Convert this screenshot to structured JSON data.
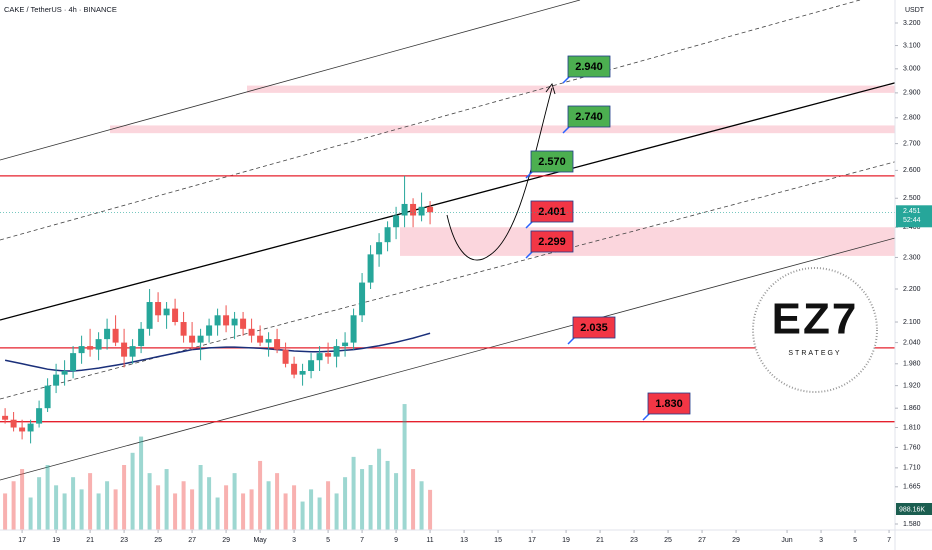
{
  "chart_data": {
    "type": "candlestick",
    "title": "CAKE / TetherUS · 4h · BINANCE",
    "currency": "USDT",
    "log_scale": true,
    "grid": false,
    "up_color": "#26a69a",
    "down_color": "#ef5350",
    "ma_color": "#1a2f7a",
    "ylim": [
      1.58,
      3.2
    ],
    "yticks": [
      {
        "value": 3.2,
        "label": "3.200"
      },
      {
        "value": 3.1,
        "label": "3.100"
      },
      {
        "value": 3.0,
        "label": "3.000"
      },
      {
        "value": 2.9,
        "label": "2.900"
      },
      {
        "value": 2.8,
        "label": "2.800"
      },
      {
        "value": 2.7,
        "label": "2.700"
      },
      {
        "value": 2.6,
        "label": "2.600"
      },
      {
        "value": 2.5,
        "label": "2.500"
      },
      {
        "value": 2.4,
        "label": "2.400"
      },
      {
        "value": 2.3,
        "label": "2.300"
      },
      {
        "value": 2.2,
        "label": "2.200"
      },
      {
        "value": 2.1,
        "label": "2.100"
      },
      {
        "value": 2.04,
        "label": "2.040"
      },
      {
        "value": 1.98,
        "label": "1.980"
      },
      {
        "value": 1.92,
        "label": "1.920"
      },
      {
        "value": 1.86,
        "label": "1.860"
      },
      {
        "value": 1.81,
        "label": "1.810"
      },
      {
        "value": 1.76,
        "label": "1.760"
      },
      {
        "value": 1.71,
        "label": "1.710"
      },
      1.665,
      {
        "value": 1.58,
        "label": "1.580"
      }
    ],
    "xlim": [
      -1.3,
      51.35
    ],
    "xticks": [
      {
        "value": 0,
        "label": "17"
      },
      {
        "value": 2,
        "label": "19"
      },
      {
        "value": 4,
        "label": "21"
      },
      {
        "value": 6,
        "label": "23"
      },
      {
        "value": 8,
        "label": "25"
      },
      {
        "value": 10,
        "label": "27"
      },
      {
        "value": 12,
        "label": "29"
      },
      {
        "value": 14,
        "label": "May"
      },
      {
        "value": 16,
        "label": "3"
      },
      {
        "value": 18,
        "label": "5"
      },
      {
        "value": 20,
        "label": "7"
      },
      {
        "value": 22,
        "label": "9"
      },
      {
        "value": 24,
        "label": "11"
      },
      {
        "value": 26,
        "label": "13"
      },
      {
        "value": 28,
        "label": "15"
      },
      {
        "value": 30,
        "label": "17"
      },
      {
        "value": 32,
        "label": "19"
      },
      {
        "value": 34,
        "label": "21"
      },
      {
        "value": 36,
        "label": "23"
      },
      {
        "value": 38,
        "label": "25"
      },
      {
        "value": 40,
        "label": "27"
      },
      {
        "value": 42,
        "label": "29"
      },
      {
        "value": 45,
        "label": "Jun"
      },
      {
        "value": 47,
        "label": "3"
      },
      {
        "value": 49,
        "label": "5"
      },
      {
        "value": 51,
        "label": "7"
      }
    ],
    "x": [
      -1,
      -0.5,
      0,
      0.5,
      1,
      1.5,
      2,
      2.5,
      3,
      3.5,
      4,
      4.5,
      5,
      5.5,
      6,
      6.5,
      7,
      7.5,
      8,
      8.5,
      9,
      9.5,
      10,
      10.5,
      11,
      11.5,
      12,
      12.5,
      13,
      13.5,
      14,
      14.5,
      15,
      15.5,
      16,
      16.5,
      17,
      17.5,
      18,
      18.5,
      19,
      19.5,
      20,
      20.5,
      21,
      21.5,
      22,
      22.5,
      23,
      23.5,
      24
    ],
    "candles": [
      [
        1.84,
        1.86,
        1.82,
        1.83
      ],
      [
        1.83,
        1.85,
        1.8,
        1.81
      ],
      [
        1.81,
        1.83,
        1.78,
        1.8
      ],
      [
        1.8,
        1.83,
        1.77,
        1.82
      ],
      [
        1.82,
        1.88,
        1.81,
        1.86
      ],
      [
        1.86,
        1.94,
        1.85,
        1.92
      ],
      [
        1.92,
        1.98,
        1.9,
        1.95
      ],
      [
        1.95,
        1.99,
        1.92,
        1.96
      ],
      [
        1.96,
        2.03,
        1.94,
        2.01
      ],
      [
        2.01,
        2.06,
        1.98,
        2.03
      ],
      [
        2.03,
        2.08,
        2.0,
        2.02
      ],
      [
        2.02,
        2.07,
        1.99,
        2.05
      ],
      [
        2.05,
        2.11,
        2.02,
        2.08
      ],
      [
        2.08,
        2.12,
        2.03,
        2.04
      ],
      [
        2.04,
        2.08,
        1.97,
        2.0
      ],
      [
        2.0,
        2.05,
        1.98,
        2.03
      ],
      [
        2.03,
        2.1,
        2.01,
        2.08
      ],
      [
        2.08,
        2.2,
        2.06,
        2.16
      ],
      [
        2.16,
        2.19,
        2.1,
        2.12
      ],
      [
        2.12,
        2.16,
        2.08,
        2.14
      ],
      [
        2.14,
        2.17,
        2.09,
        2.1
      ],
      [
        2.1,
        2.13,
        2.04,
        2.06
      ],
      [
        2.06,
        2.1,
        2.02,
        2.04
      ],
      [
        2.04,
        2.08,
        1.99,
        2.06
      ],
      [
        2.06,
        2.11,
        2.04,
        2.09
      ],
      [
        2.09,
        2.14,
        2.06,
        2.12
      ],
      [
        2.12,
        2.15,
        2.07,
        2.09
      ],
      [
        2.09,
        2.13,
        2.05,
        2.11
      ],
      [
        2.11,
        2.13,
        2.06,
        2.08
      ],
      [
        2.08,
        2.11,
        2.04,
        2.06
      ],
      [
        2.06,
        2.09,
        2.03,
        2.04
      ],
      [
        2.04,
        2.07,
        2.0,
        2.05
      ],
      [
        2.05,
        2.08,
        2.01,
        2.02
      ],
      [
        2.02,
        2.04,
        1.97,
        1.98
      ],
      [
        1.98,
        2.0,
        1.94,
        1.95
      ],
      [
        1.95,
        1.98,
        1.92,
        1.96
      ],
      [
        1.96,
        2.01,
        1.94,
        1.99
      ],
      [
        1.99,
        2.03,
        1.96,
        2.01
      ],
      [
        2.01,
        2.04,
        1.98,
        2.0
      ],
      [
        2.0,
        2.05,
        1.97,
        2.03
      ],
      [
        2.03,
        2.07,
        2.0,
        2.04
      ],
      [
        2.04,
        2.14,
        2.02,
        2.12
      ],
      [
        2.12,
        2.25,
        2.1,
        2.22
      ],
      [
        2.22,
        2.34,
        2.2,
        2.31
      ],
      [
        2.31,
        2.38,
        2.27,
        2.35
      ],
      [
        2.35,
        2.42,
        2.32,
        2.4
      ],
      [
        2.4,
        2.47,
        2.36,
        2.44
      ],
      [
        2.44,
        2.58,
        2.4,
        2.48
      ],
      [
        2.48,
        2.5,
        2.4,
        2.44
      ],
      [
        2.44,
        2.52,
        2.42,
        2.47
      ],
      [
        2.47,
        2.49,
        2.41,
        2.451
      ]
    ],
    "ma": [
      1.99,
      1.985,
      1.98,
      1.975,
      1.97,
      1.965,
      1.962,
      1.96,
      1.96,
      1.962,
      1.965,
      1.968,
      1.972,
      1.976,
      1.98,
      1.985,
      1.99,
      1.995,
      2.0,
      2.005,
      2.01,
      2.015,
      2.02,
      2.022,
      2.025,
      2.026,
      2.027,
      2.027,
      2.026,
      2.025,
      2.024,
      2.022,
      2.02,
      2.018,
      2.016,
      2.015,
      2.014,
      2.014,
      2.015,
      2.016,
      2.018,
      2.02,
      2.023,
      2.027,
      2.031,
      2.036,
      2.041,
      2.047,
      2.053,
      2.06,
      2.067
    ],
    "volume": [
      900,
      1200,
      1500,
      800,
      1300,
      1600,
      1100,
      900,
      1300,
      1000,
      1400,
      900,
      1200,
      1000,
      1600,
      1900,
      2300,
      1400,
      1100,
      1500,
      900,
      1200,
      1000,
      1600,
      1300,
      800,
      1100,
      1400,
      900,
      1000,
      1700,
      1200,
      1400,
      900,
      1100,
      700,
      1000,
      800,
      1200,
      900,
      1300,
      1800,
      1500,
      1600,
      2000,
      1700,
      1400,
      3100,
      1500,
      1200,
      988.16
    ],
    "volume_label": "988.16K",
    "vlim": [
      0,
      3200
    ],
    "last_price": 2.451,
    "countdown": "52:44",
    "levels": [
      2.58,
      2.025,
      1.825
    ],
    "zones": [
      [
        2.9,
        2.93
      ],
      [
        2.74,
        2.77
      ],
      [
        2.305,
        2.4
      ]
    ],
    "targets": {
      "values": [
        2.94,
        2.74,
        2.57,
        2.401,
        2.299,
        2.035,
        1.83
      ],
      "value_labels": [
        "2.940",
        "2.740",
        "2.570",
        "2.401",
        "2.299",
        "2.035",
        "1.830"
      ],
      "colors": [
        "#4caf50",
        "#4caf50",
        "#4caf50",
        "#f23645",
        "#f23645",
        "#f23645",
        "#f23645"
      ]
    },
    "logo": {
      "mark": "EZ7",
      "caption": "STRATEGY"
    }
  }
}
